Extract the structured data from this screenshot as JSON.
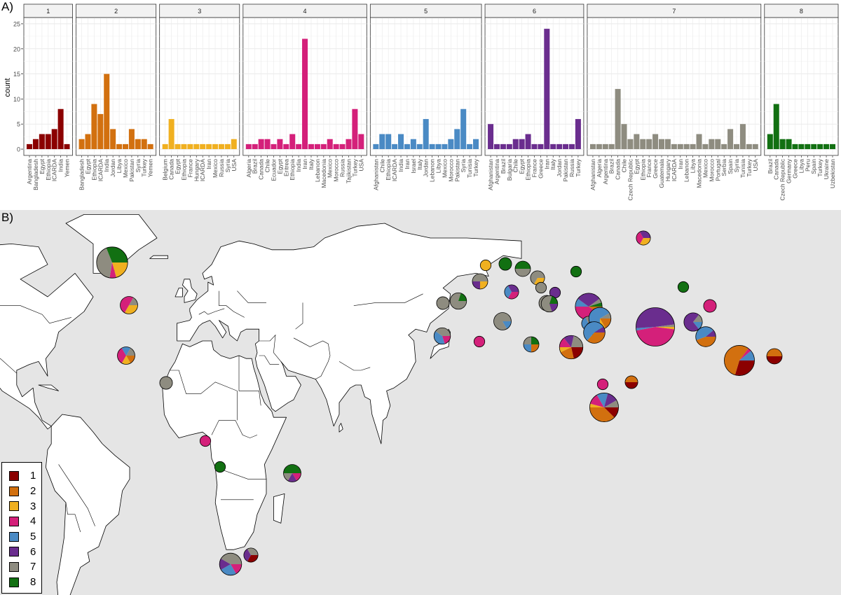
{
  "panel_labels": {
    "a": "A)",
    "b": "B)"
  },
  "colors": {
    "1": "#8b0000",
    "2": "#d2700f",
    "3": "#f0b020",
    "4": "#d4207a",
    "5": "#4a8ac4",
    "6": "#6a2d8e",
    "7": "#8e8c80",
    "8": "#127012"
  },
  "chart_data": [
    {
      "type": "bar",
      "layout": "faceted",
      "ylabel": "count",
      "xlabel": "",
      "ylim": [
        0,
        25
      ],
      "yticks": [
        0,
        5,
        10,
        15,
        20,
        25
      ],
      "grid": true,
      "facets": [
        {
          "label": "1",
          "color": "#8b0000",
          "categories": [
            "Argentina",
            "Bangladesh",
            "Egypt",
            "Ethiopia",
            "ICARDA",
            "India",
            "Yemen"
          ],
          "values": [
            1,
            2,
            3,
            3,
            4,
            8,
            1
          ]
        },
        {
          "label": "2",
          "color": "#d2700f",
          "categories": [
            "Bangladesh",
            "Egypt",
            "Ethiopia",
            "ICARDA",
            "India",
            "Jordan",
            "Libya",
            "Mexico",
            "Pakistan",
            "Syria",
            "Turkey",
            "Yemen"
          ],
          "values": [
            2,
            3,
            9,
            7,
            15,
            4,
            1,
            1,
            4,
            2,
            2,
            1
          ]
        },
        {
          "label": "3",
          "color": "#f0b020",
          "categories": [
            "Belgium",
            "Canada",
            "Egypt",
            "Ethiopia",
            "France",
            "Hungary",
            "ICARDA",
            "Iran",
            "Mexico",
            "Russia",
            "Syria",
            "USA"
          ],
          "values": [
            1,
            6,
            1,
            1,
            1,
            1,
            1,
            1,
            1,
            1,
            1,
            2
          ]
        },
        {
          "label": "4",
          "color": "#d4207a",
          "categories": [
            "Algeria",
            "Brazil",
            "Canada",
            "Chile",
            "Ecuador",
            "Egypt",
            "Eritrea",
            "Ethiopia",
            "India",
            "Iran",
            "Italy",
            "Lebanon",
            "Macedonia",
            "Mexico",
            "Morocco",
            "Russia",
            "Tajikistan",
            "Turkey",
            "USA"
          ],
          "values": [
            1,
            1,
            2,
            2,
            1,
            2,
            1,
            3,
            1,
            22,
            1,
            1,
            1,
            2,
            1,
            1,
            2,
            8,
            3
          ]
        },
        {
          "label": "5",
          "color": "#4a8ac4",
          "categories": [
            "Afghanistan",
            "Chile",
            "Ethiopia",
            "ICARDA",
            "India",
            "Iran",
            "Israel",
            "Italy",
            "Jordan",
            "Lebanon",
            "Libya",
            "Mexico",
            "Morocco",
            "Pakistan",
            "Syria",
            "Tunisia",
            "Turkey"
          ],
          "values": [
            1,
            3,
            3,
            1,
            3,
            1,
            2,
            1,
            6,
            1,
            1,
            1,
            2,
            4,
            8,
            1,
            2
          ]
        },
        {
          "label": "6",
          "color": "#6a2d8e",
          "categories": [
            "Afghanistan",
            "Argentina",
            "Brazil",
            "Bulgaria",
            "Chile",
            "Egypt",
            "Ethiopia",
            "France",
            "Greece",
            "Iran",
            "Italy",
            "Jordan",
            "Pakistan",
            "Russia",
            "Turkey"
          ],
          "values": [
            5,
            1,
            1,
            1,
            2,
            2,
            3,
            1,
            1,
            24,
            1,
            1,
            1,
            1,
            6
          ]
        },
        {
          "label": "7",
          "color": "#8e8c80",
          "categories": [
            "Afghanistan",
            "Algeria",
            "Argentina",
            "Brazil",
            "Canada",
            "Chile",
            "Czech Republic",
            "Egypt",
            "Ethiopia",
            "France",
            "Greece",
            "Guatemala",
            "Hungary",
            "ICARDA",
            "Iran",
            "Lebanon",
            "Libya",
            "Macedonia",
            "Mexico",
            "Morocco",
            "Portugal",
            "Serbia",
            "Spain",
            "Syria",
            "Tunisia",
            "Turkey",
            "USA"
          ],
          "values": [
            1,
            1,
            1,
            1,
            12,
            5,
            2,
            3,
            2,
            2,
            3,
            2,
            2,
            1,
            1,
            1,
            1,
            3,
            1,
            2,
            2,
            1,
            4,
            1,
            5,
            1,
            1
          ]
        },
        {
          "label": "8",
          "color": "#127012",
          "categories": [
            "Brazil",
            "Canada",
            "Czech Republic",
            "Germany",
            "Greece",
            "Libya",
            "Peru",
            "Spain",
            "Turkey",
            "Ukraine",
            "Uzbekistan"
          ],
          "values": [
            3,
            9,
            2,
            2,
            1,
            1,
            1,
            1,
            1,
            1,
            1
          ]
        }
      ]
    },
    {
      "type": "pie",
      "layout": "map",
      "legend": {
        "position": "bottom-left",
        "items": [
          "1",
          "2",
          "3",
          "4",
          "5",
          "6",
          "7",
          "8"
        ]
      },
      "pies": [
        {
          "country": "Canada",
          "values": {
            "3": 6,
            "4": 2,
            "7": 12,
            "8": 9
          }
        },
        {
          "country": "USA",
          "values": {
            "3": 2,
            "4": 3,
            "7": 1
          }
        },
        {
          "country": "Mexico",
          "values": {
            "2": 1,
            "3": 1,
            "4": 2,
            "5": 1,
            "7": 1
          }
        },
        {
          "country": "Guatemala",
          "values": {
            "7": 2
          }
        },
        {
          "country": "Ecuador",
          "values": {
            "4": 1
          }
        },
        {
          "country": "Peru",
          "values": {
            "8": 1
          }
        },
        {
          "country": "Brazil",
          "values": {
            "4": 1,
            "6": 1,
            "7": 1,
            "8": 3
          }
        },
        {
          "country": "Chile",
          "values": {
            "4": 2,
            "5": 3,
            "6": 2,
            "7": 5
          }
        },
        {
          "country": "Argentina",
          "values": {
            "1": 1,
            "6": 1,
            "7": 1
          }
        },
        {
          "country": "Portugal",
          "values": {
            "7": 2
          }
        },
        {
          "country": "Spain",
          "values": {
            "7": 4,
            "8": 1
          }
        },
        {
          "country": "Morocco",
          "values": {
            "4": 1,
            "5": 2,
            "7": 2
          }
        },
        {
          "country": "Algeria",
          "values": {
            "4": 1
          }
        },
        {
          "country": "Tunisia",
          "values": {
            "5": 1,
            "7": 5
          }
        },
        {
          "country": "Libya",
          "values": {
            "2": 1,
            "5": 1,
            "7": 1,
            "8": 1
          }
        },
        {
          "country": "Egypt",
          "values": {
            "1": 3,
            "2": 3,
            "3": 1,
            "4": 2,
            "6": 2,
            "7": 3
          }
        },
        {
          "country": "Belgium",
          "values": {
            "3": 1
          }
        },
        {
          "country": "France",
          "values": {
            "3": 1,
            "6": 1,
            "7": 2
          }
        },
        {
          "country": "Germany",
          "values": {
            "8": 2
          }
        },
        {
          "country": "Czech Republic",
          "values": {
            "7": 2,
            "8": 2
          }
        },
        {
          "country": "Hungary",
          "values": {
            "3": 1,
            "7": 2
          }
        },
        {
          "country": "Serbia",
          "values": {
            "7": 1
          }
        },
        {
          "country": "Italy",
          "values": {
            "4": 1,
            "5": 1,
            "6": 1
          }
        },
        {
          "country": "Macedonia",
          "values": {
            "4": 1,
            "7": 3
          }
        },
        {
          "country": "Bulgaria",
          "values": {
            "6": 1
          }
        },
        {
          "country": "Greece",
          "values": {
            "6": 1,
            "7": 3,
            "8": 1
          }
        },
        {
          "country": "Ukraine",
          "values": {
            "8": 1
          }
        },
        {
          "country": "Russia",
          "values": {
            "3": 1,
            "4": 1,
            "6": 1
          }
        },
        {
          "country": "Turkey",
          "values": {
            "2": 2,
            "4": 8,
            "5": 2,
            "6": 6,
            "7": 1,
            "8": 1
          }
        },
        {
          "country": "Lebanon",
          "values": {
            "4": 1,
            "5": 1,
            "7": 1
          }
        },
        {
          "country": "Syria",
          "values": {
            "2": 2,
            "3": 1,
            "5": 8,
            "7": 1
          }
        },
        {
          "country": "Israel",
          "values": {
            "5": 2
          }
        },
        {
          "country": "Jordan",
          "values": {
            "2": 4,
            "5": 6,
            "6": 1
          }
        },
        {
          "country": "Iran",
          "values": {
            "3": 1,
            "4": 22,
            "5": 1,
            "6": 24,
            "7": 1
          }
        },
        {
          "country": "Afghanistan",
          "values": {
            "5": 1,
            "6": 5,
            "7": 1
          }
        },
        {
          "country": "Tajikistan",
          "values": {
            "4": 2
          }
        },
        {
          "country": "Uzbekistan",
          "values": {
            "8": 1
          }
        },
        {
          "country": "Pakistan",
          "values": {
            "2": 4,
            "5": 4,
            "6": 1
          }
        },
        {
          "country": "India",
          "values": {
            "1": 8,
            "2": 15,
            "4": 1,
            "5": 3
          }
        },
        {
          "country": "Bangladesh",
          "values": {
            "1": 2,
            "2": 2
          }
        },
        {
          "country": "Yemen",
          "values": {
            "1": 1,
            "2": 1
          }
        },
        {
          "country": "Eritrea",
          "values": {
            "4": 1
          }
        },
        {
          "country": "Ethiopia",
          "values": {
            "1": 3,
            "2": 9,
            "3": 1,
            "4": 3,
            "5": 3,
            "6": 3,
            "7": 2
          }
        }
      ]
    }
  ]
}
